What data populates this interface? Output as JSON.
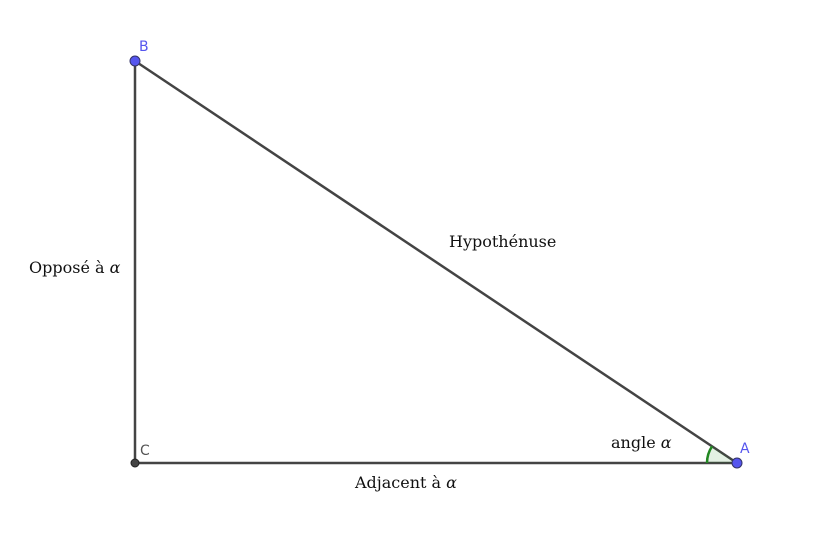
{
  "points": [
    {
      "name": "A",
      "color": "#5555ee"
    },
    {
      "name": "B",
      "color": "#5555ee"
    },
    {
      "name": "C",
      "color": "#555555"
    }
  ],
  "labels": {
    "opposite": {
      "text": "Opposé à ",
      "symbol": "α"
    },
    "hypotenuse": {
      "text": "Hypothénuse"
    },
    "adjacent": {
      "text": "Adjacent à ",
      "symbol": "α"
    },
    "angle": {
      "text": "angle ",
      "symbol": "α"
    }
  },
  "colors": {
    "segment": "#444444",
    "angle_arc": "#228822",
    "point_fill": "#5555ee",
    "point_c_fill": "#444444",
    "point_label": "#5555ee",
    "point_c_label": "#555555"
  }
}
